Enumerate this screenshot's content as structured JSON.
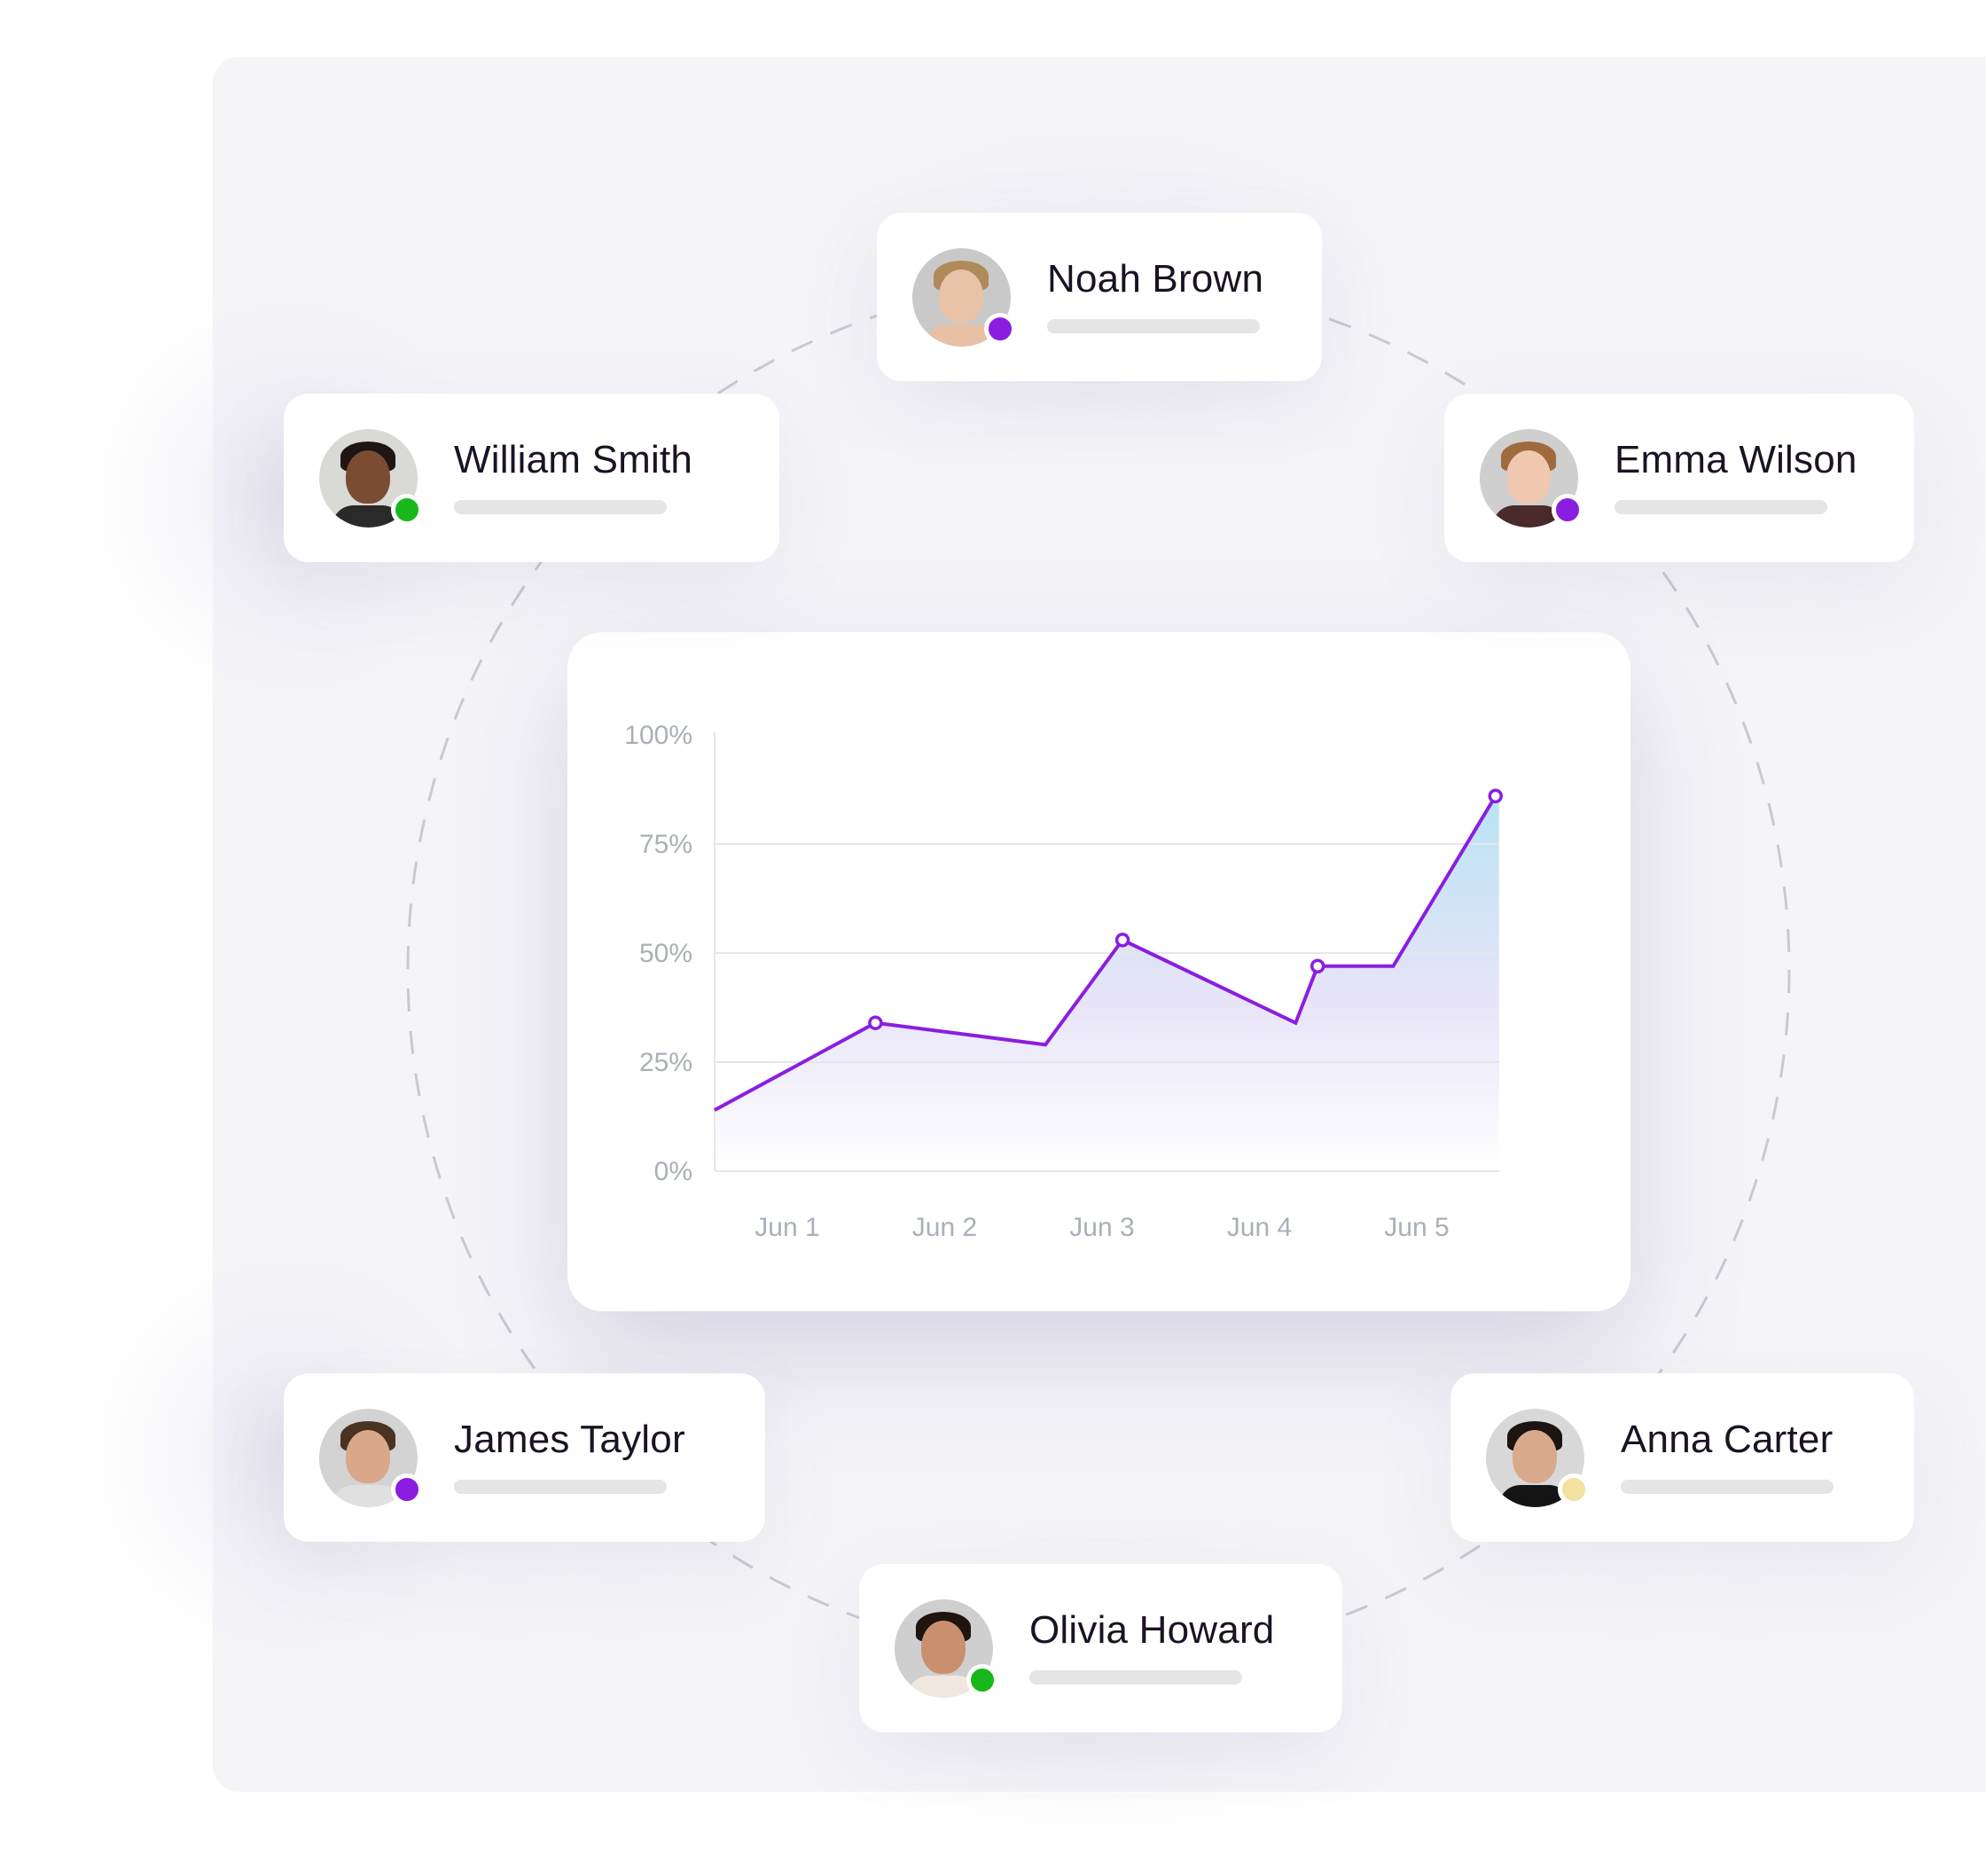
{
  "colors": {
    "accent": "#8a1ee0",
    "online": "#18b81a",
    "away": "#f3e2a0",
    "background_panel": "#f5f5f8",
    "card": "#ffffff",
    "placeholder_bar": "#e5e5e5"
  },
  "users": [
    {
      "id": "noah",
      "name": "Noah Brown",
      "status_color": "#8a1ee0",
      "skin": "#e9c3a8",
      "hair": "#b08a5a",
      "bg": "#c9c9c9",
      "shirt": "#e8c0a5"
    },
    {
      "id": "william",
      "name": "William Smith",
      "status_color": "#18b81a",
      "skin": "#7a4c33",
      "hair": "#1e1612",
      "bg": "#d9d9d6",
      "shirt": "#2a2a2a"
    },
    {
      "id": "emma",
      "name": "Emma Wilson",
      "status_color": "#8a1ee0",
      "skin": "#f0c8b0",
      "hair": "#a06a3c",
      "bg": "#cfcfcf",
      "shirt": "#4a2a2a"
    },
    {
      "id": "james",
      "name": "James Taylor",
      "status_color": "#8a1ee0",
      "skin": "#d8a888",
      "hair": "#4a3322",
      "bg": "#d3d3d3",
      "shirt": "#e0e0e0"
    },
    {
      "id": "anna",
      "name": "Anna Carter",
      "status_color": "#f3e2a0",
      "skin": "#d9a98c",
      "hair": "#1c1410",
      "bg": "#d8d8d8",
      "shirt": "#141414"
    },
    {
      "id": "olivia",
      "name": "Olivia Howard",
      "status_color": "#18b81a",
      "skin": "#c99070",
      "hair": "#1f140e",
      "bg": "#cfcfcf",
      "shirt": "#f0e8e0"
    }
  ],
  "chart_data": {
    "type": "area",
    "title": "",
    "xlabel": "",
    "ylabel": "",
    "x_tick_labels": [
      "Jun 1",
      "Jun 2",
      "Jun 3",
      "Jun 4",
      "Jun 5"
    ],
    "x_tick_days": [
      1,
      2,
      3,
      4,
      5
    ],
    "y_tick_labels": [
      "0%",
      "25%",
      "50%",
      "75%",
      "100%"
    ],
    "y_tick_values": [
      0,
      25,
      50,
      75,
      100
    ],
    "ylim": [
      0,
      100
    ],
    "xlim_days": [
      0.53,
      5.53
    ],
    "grid": "horizontal",
    "line_color": "#8a1ee0",
    "fill_gradient": [
      "#b8e4f4",
      "#e8e4f8",
      "#ffffff"
    ],
    "series": [
      {
        "points": [
          {
            "day": 0.53,
            "value": 14,
            "marker": false
          },
          {
            "day": 1.56,
            "value": 34,
            "marker": true
          },
          {
            "day": 2.64,
            "value": 29,
            "marker": false
          },
          {
            "day": 3.13,
            "value": 53,
            "marker": true
          },
          {
            "day": 4.23,
            "value": 34,
            "marker": false
          },
          {
            "day": 4.37,
            "value": 47,
            "marker": true
          },
          {
            "day": 4.85,
            "value": 47,
            "marker": false
          },
          {
            "day": 5.5,
            "value": 86,
            "marker": true
          }
        ]
      }
    ]
  }
}
